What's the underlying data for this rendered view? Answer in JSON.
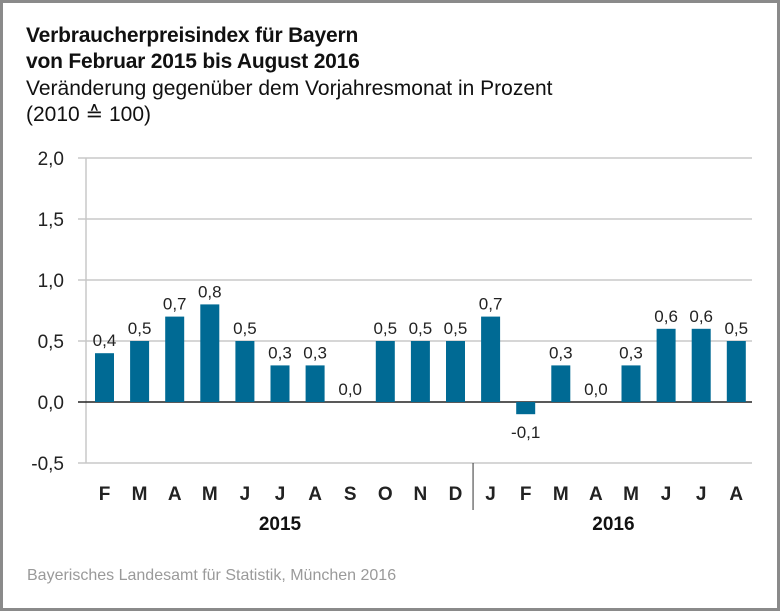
{
  "header": {
    "title_line1": "Verbraucherpreisindex für Bayern",
    "title_line2": "von Februar 2015 bis August 2016",
    "subtitle_line1": "Veränderung gegenüber dem Vorjahresmonat in Prozent",
    "subtitle_line2": "(2010 ≙ 100)"
  },
  "footer": {
    "source": "Bayerisches Landesamt für Statistik, München 2016"
  },
  "colors": {
    "bar": "#006a94",
    "grid": "#c8c8c8",
    "zero_line": "#222222",
    "frame": "#8a8a8a"
  },
  "chart_data": {
    "type": "bar",
    "title": "Verbraucherpreisindex für Bayern von Februar 2015 bis August 2016",
    "subtitle": "Veränderung gegenüber dem Vorjahresmonat in Prozent (2010 ≙ 100)",
    "xlabel": "",
    "ylabel": "",
    "ylim": [
      -0.5,
      2.0
    ],
    "yticks": [
      2.0,
      1.5,
      1.0,
      0.5,
      0.0,
      -0.5
    ],
    "ytick_labels": [
      "2,0",
      "1,5",
      "1,0",
      "0,5",
      "0,0",
      "-0,5"
    ],
    "grid": true,
    "legend": "none",
    "categories": [
      "F",
      "M",
      "A",
      "M",
      "J",
      "J",
      "A",
      "S",
      "O",
      "N",
      "D",
      "J",
      "F",
      "M",
      "A",
      "M",
      "J",
      "J",
      "A"
    ],
    "year_groups": [
      {
        "label": "2015",
        "start": 0,
        "end": 10
      },
      {
        "label": "2016",
        "start": 11,
        "end": 18
      }
    ],
    "values": [
      0.4,
      0.5,
      0.7,
      0.8,
      0.5,
      0.3,
      0.3,
      0.0,
      0.5,
      0.5,
      0.5,
      0.7,
      -0.1,
      0.3,
      0.0,
      0.3,
      0.6,
      0.6,
      0.5
    ],
    "value_labels": [
      "0,4",
      "0,5",
      "0,7",
      "0,8",
      "0,5",
      "0,3",
      "0,3",
      "0,0",
      "0,5",
      "0,5",
      "0,5",
      "0,7",
      "-0,1",
      "0,3",
      "0,0",
      "0,3",
      "0,6",
      "0,6",
      "0,5"
    ]
  }
}
